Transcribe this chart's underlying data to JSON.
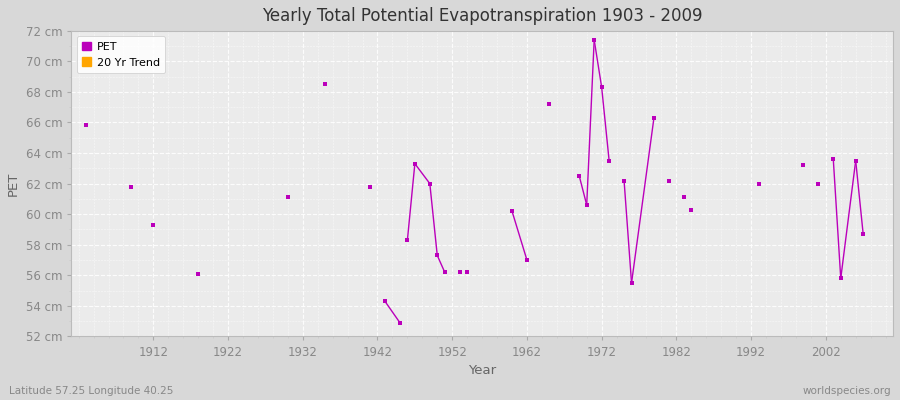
{
  "title": "Yearly Total Potential Evapotranspiration 1903 - 2009",
  "xlabel": "Year",
  "ylabel": "PET",
  "bottom_left_label": "Latitude 57.25 Longitude 40.25",
  "bottom_right_label": "worldspecies.org",
  "fig_bg_color": "#d8d8d8",
  "plot_bg_color": "#ebebeb",
  "grid_color": "#ffffff",
  "title_color": "#333333",
  "label_color": "#666666",
  "tick_color": "#888888",
  "ylim": [
    52,
    72
  ],
  "xlim": [
    1901,
    2011
  ],
  "ytick_labels": [
    "52 cm",
    "54 cm",
    "56 cm",
    "58 cm",
    "60 cm",
    "62 cm",
    "64 cm",
    "66 cm",
    "68 cm",
    "70 cm",
    "72 cm"
  ],
  "ytick_values": [
    52,
    54,
    56,
    58,
    60,
    62,
    64,
    66,
    68,
    70,
    72
  ],
  "xtick_values": [
    1912,
    1922,
    1932,
    1942,
    1952,
    1962,
    1972,
    1982,
    1992,
    2002
  ],
  "pet_color": "#bb00bb",
  "trend_color": "#ffa500",
  "pet_data": [
    [
      1903,
      65.8
    ],
    [
      1909,
      61.8
    ],
    [
      1912,
      59.3
    ],
    [
      1918,
      56.1
    ],
    [
      1930,
      61.1
    ],
    [
      1935,
      68.5
    ],
    [
      1941,
      61.8
    ],
    [
      1943,
      54.3
    ],
    [
      1945,
      52.9
    ],
    [
      1946,
      58.3
    ],
    [
      1947,
      63.3
    ],
    [
      1949,
      62.0
    ],
    [
      1950,
      57.3
    ],
    [
      1951,
      56.2
    ],
    [
      1953,
      56.2
    ],
    [
      1954,
      56.2
    ],
    [
      1960,
      60.2
    ],
    [
      1962,
      57.0
    ],
    [
      1965,
      67.2
    ],
    [
      1969,
      62.5
    ],
    [
      1970,
      60.6
    ],
    [
      1971,
      71.4
    ],
    [
      1972,
      68.3
    ],
    [
      1973,
      63.5
    ],
    [
      1975,
      62.2
    ],
    [
      1976,
      55.5
    ],
    [
      1979,
      66.3
    ],
    [
      1981,
      62.2
    ],
    [
      1983,
      61.1
    ],
    [
      1984,
      60.3
    ],
    [
      1993,
      62.0
    ],
    [
      1999,
      63.2
    ],
    [
      2001,
      62.0
    ],
    [
      2003,
      63.6
    ],
    [
      2004,
      55.8
    ],
    [
      2006,
      63.5
    ],
    [
      2007,
      58.7
    ]
  ],
  "connected_segments": [
    [
      [
        1943,
        54.3
      ],
      [
        1945,
        52.9
      ]
    ],
    [
      [
        1946,
        58.3
      ],
      [
        1947,
        63.3
      ]
    ],
    [
      [
        1947,
        63.3
      ],
      [
        1949,
        62.0
      ]
    ],
    [
      [
        1949,
        62.0
      ],
      [
        1950,
        57.3
      ]
    ],
    [
      [
        1950,
        57.3
      ],
      [
        1951,
        56.2
      ]
    ],
    [
      [
        1960,
        60.2
      ],
      [
        1962,
        57.0
      ]
    ],
    [
      [
        1969,
        62.5
      ],
      [
        1970,
        60.6
      ]
    ],
    [
      [
        1970,
        60.6
      ],
      [
        1971,
        71.4
      ]
    ],
    [
      [
        1971,
        71.4
      ],
      [
        1972,
        68.3
      ]
    ],
    [
      [
        1972,
        68.3
      ],
      [
        1973,
        63.5
      ]
    ],
    [
      [
        1975,
        62.2
      ],
      [
        1976,
        55.5
      ]
    ],
    [
      [
        1976,
        55.5
      ],
      [
        1979,
        66.3
      ]
    ],
    [
      [
        2003,
        63.6
      ],
      [
        2004,
        55.8
      ]
    ],
    [
      [
        2004,
        55.8
      ],
      [
        2006,
        63.5
      ]
    ],
    [
      [
        2006,
        63.5
      ],
      [
        2007,
        58.7
      ]
    ]
  ]
}
